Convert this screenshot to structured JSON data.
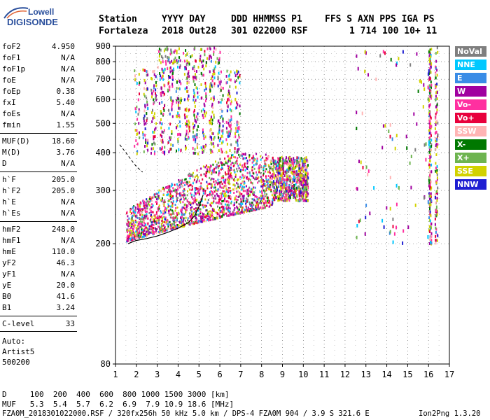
{
  "logo": {
    "top": "Lowell",
    "bottom": "DIGISONDE"
  },
  "header": {
    "row1": [
      "Station",
      "YYYY DAY",
      "DDD HHMMSS P1",
      "FFS S AXN PPS IGA PS"
    ],
    "row2": [
      "Fortaleza",
      "2018 Out28",
      "301 022000 RSF",
      "1 714 100 10+ 11"
    ]
  },
  "params_a": [
    {
      "name": "foF2",
      "value": "4.950"
    },
    {
      "name": "foF1",
      "value": "N/A"
    },
    {
      "name": "foF1p",
      "value": "N/A"
    },
    {
      "name": "foE",
      "value": "N/A"
    },
    {
      "name": "foEp",
      "value": "0.38"
    },
    {
      "name": "fxI",
      "value": "5.40"
    },
    {
      "name": "foEs",
      "value": "N/A"
    },
    {
      "name": "fmin",
      "value": "1.55"
    }
  ],
  "params_b": [
    {
      "name": "MUF(D)",
      "value": "18.60"
    },
    {
      "name": "M(D)",
      "value": "3.76"
    },
    {
      "name": "D",
      "value": "N/A"
    }
  ],
  "params_c": [
    {
      "name": "h`F",
      "value": "205.0"
    },
    {
      "name": "h`F2",
      "value": "205.0"
    },
    {
      "name": "h`E",
      "value": "N/A"
    },
    {
      "name": "h`Es",
      "value": "N/A"
    }
  ],
  "params_d": [
    {
      "name": "hmF2",
      "value": "248.0"
    },
    {
      "name": "hmF1",
      "value": "N/A"
    },
    {
      "name": "hmE",
      "value": "110.0"
    },
    {
      "name": "yF2",
      "value": "46.3"
    },
    {
      "name": "yF1",
      "value": "N/A"
    },
    {
      "name": "yE",
      "value": "20.0"
    },
    {
      "name": "B0",
      "value": "41.6"
    },
    {
      "name": "B1",
      "value": "3.24"
    }
  ],
  "clevel": {
    "name": "C-level",
    "value": "33"
  },
  "auto": [
    "Auto:",
    "Artist5",
    "500200"
  ],
  "legend": [
    {
      "label": "NoVal",
      "color": "#7f7f7f"
    },
    {
      "label": "NNE",
      "color": "#00c8ff"
    },
    {
      "label": "E",
      "color": "#3a8ce6"
    },
    {
      "label": "W",
      "color": "#a000a0"
    },
    {
      "label": "Vo-",
      "color": "#ff30a0"
    },
    {
      "label": "Vo+",
      "color": "#e8003c"
    },
    {
      "label": "SSW",
      "color": "#ffb4b4"
    },
    {
      "label": "X-",
      "color": "#007800"
    },
    {
      "label": "X+",
      "color": "#6eb450"
    },
    {
      "label": "SSE",
      "color": "#d2d200"
    },
    {
      "label": "NNW",
      "color": "#1e1ed2"
    }
  ],
  "bottom": {
    "d_row": "D     100  200  400  600  800 1000 1500 3000 [km]",
    "muf_row": "MUF   5.3  5.4  5.7  6.2  6.9  7.9 10.9 18.6 [MHz]",
    "footer_left": "FZA0M_2018301022000.RSF / 320fx256h 50 kHz 5.0 km / DPS-4 FZA0M 904 / 3.9 S 321.6 E",
    "footer_right": "Ion2Png 1.3.20"
  },
  "chart_data": {
    "type": "scatter",
    "xlabel": "",
    "ylabel": "",
    "xlim": [
      1,
      17
    ],
    "ylim": [
      80,
      900
    ],
    "x_ticks": [
      1,
      2,
      3,
      4,
      5,
      6,
      7,
      8,
      9,
      10,
      11,
      12,
      13,
      14,
      15,
      16,
      17
    ],
    "y_ticks": [
      80,
      200,
      300,
      400,
      500,
      600,
      700,
      800,
      900
    ],
    "grid": true,
    "y_scale": "log",
    "trace_curve": {
      "name": "",
      "x": [
        1.6,
        2.0,
        2.5,
        3.0,
        3.5,
        4.0,
        4.5,
        4.8,
        5.0,
        5.2
      ],
      "y": [
        200,
        205,
        208,
        212,
        218,
        225,
        235,
        248,
        265,
        290
      ]
    },
    "dashed_curve": {
      "name": "",
      "x": [
        1.2,
        1.5,
        1.8,
        2.0,
        2.3
      ],
      "y": [
        425,
        400,
        375,
        360,
        345
      ]
    },
    "echo_clusters": [
      {
        "name": "F-trace core",
        "x_range": [
          1.5,
          8.5
        ],
        "y_range": [
          210,
          400
        ],
        "density": "high"
      },
      {
        "name": "spread-F",
        "x_range": [
          2.0,
          7.0
        ],
        "y_range": [
          400,
          760
        ],
        "density": "medium"
      },
      {
        "name": "upper echoes",
        "x_range": [
          3.0,
          6.0
        ],
        "y_range": [
          760,
          900
        ],
        "density": "low"
      },
      {
        "name": "outer band",
        "x_range": [
          8.5,
          10.2
        ],
        "y_range": [
          280,
          390
        ],
        "density": "medium"
      },
      {
        "name": "high-frequency interference",
        "x_range": [
          15.8,
          16.6
        ],
        "y_range": [
          200,
          900
        ],
        "density": "medium"
      }
    ]
  }
}
